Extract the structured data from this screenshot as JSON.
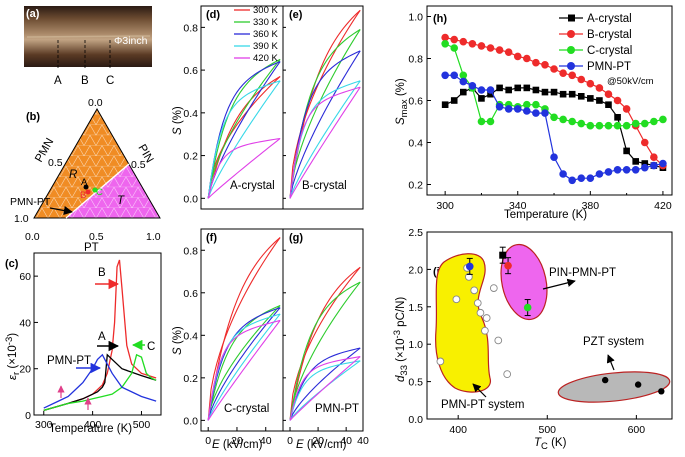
{
  "colors": {
    "T300": "#ee2b2b",
    "T330": "#2ecc2e",
    "T360": "#2b2bd8",
    "T390": "#38d8e8",
    "T420": "#e040e8",
    "A": "#000000",
    "B": "#ee2b2b",
    "C": "#22dd22",
    "PMN": "#2233dd",
    "orange": "#f08c24",
    "magenta": "#ee66ee",
    "yellow": "#f8f000",
    "gray": "#b8b8b8"
  },
  "panel_a": {
    "label": "(a)",
    "wafer": "Φ3inch",
    "markers": [
      "A",
      "B",
      "C"
    ]
  },
  "panel_b": {
    "label": "(b)",
    "corner_top": "0.0",
    "corner_left": "1.0",
    "corner_right": "1.0",
    "left_ticks": [
      "0.5"
    ],
    "right_ticks": [
      "0.5"
    ],
    "bottom_ticks": [
      "0.0",
      "0.5",
      "1.0"
    ],
    "axis_left": "PMN",
    "axis_right": "PIN",
    "axis_bottom": "PT",
    "region_R": "R",
    "region_T": "T",
    "points": [
      "A",
      "B",
      "C"
    ],
    "arrow_label": "PMN-PT"
  },
  "panel_c": {
    "label": "(c)",
    "xlabel": "Temperature (K)",
    "ylabel_main": "ε",
    "ylabel_sub": "r",
    "ylabel_rest": " (×10",
    "ylabel_exp": "-3",
    "ylabel_end": ")",
    "x_ticks": [
      "300",
      "400",
      "500"
    ],
    "y_ticks": [
      "0",
      "20",
      "40",
      "60"
    ],
    "labels": [
      "B",
      "A",
      "C",
      "PMN-PT"
    ]
  },
  "panel_d": {
    "label": "(d)",
    "name": "A-crystal",
    "legend": [
      "300 K",
      "330 K",
      "360 K",
      "390 K",
      "420 K"
    ]
  },
  "panel_e": {
    "label": "(e)",
    "name": "B-crystal"
  },
  "panel_f": {
    "label": "(f)",
    "name": "C-crystal"
  },
  "panel_g": {
    "label": "(g)",
    "name": "PMN-PT"
  },
  "panels_defg": {
    "ylabel": "S (%)",
    "ylabel_s": "S",
    "ylabel_rest": " (%)",
    "xlabel": "E (kV/cm)",
    "xlabel_e": "E",
    "xlabel_rest": " (kV/cm)",
    "x_ticks": [
      "0",
      "20",
      "40"
    ],
    "y_ticks_top": [
      "0.0",
      "0.2",
      "0.4",
      "0.6",
      "0.8"
    ],
    "y_ticks_bot": [
      "0.0",
      "0.2",
      "0.4",
      "0.6",
      "0.8"
    ],
    "extra_x_tick": "40"
  },
  "panel_h": {
    "label": "(h)",
    "xlabel": "Temperature (K)",
    "ylabel": "S",
    "ylabel_sub": "max",
    "ylabel_end": " (%)",
    "x_ticks": [
      "300",
      "340",
      "380",
      "420"
    ],
    "y_ticks": [
      "0.2",
      "0.4",
      "0.6",
      "0.8",
      "1.0"
    ],
    "legend": [
      "A-crystal",
      "B-crystal",
      "C-crystal",
      "PMN-PT"
    ],
    "note": "@50kV/cm"
  },
  "panel_i": {
    "label": "(i)",
    "xlabel": "T",
    "xlabel_sub": "C",
    "xlabel_end": " (K)",
    "ylabel": "d",
    "ylabel_sub": "33",
    "ylabel_rest": " (×10",
    "ylabel_exp": "-3",
    "ylabel_end": " pC/N)",
    "x_ticks": [
      "400",
      "500",
      "600"
    ],
    "y_ticks": [
      "0.0",
      "0.5",
      "1.0",
      "1.5",
      "2.0",
      "2.5"
    ],
    "labels": [
      "PIN-PMN-PT",
      "PZT system",
      "PMN-PT system"
    ]
  },
  "chart_data": [
    {
      "type": "line",
      "panel": "h",
      "title": "S_max vs Temperature @50kV/cm",
      "xlabel": "Temperature (K)",
      "ylabel": "S_max (%)",
      "xlim": [
        290,
        425
      ],
      "ylim": [
        0.15,
        1.05
      ],
      "series": [
        {
          "name": "A-crystal",
          "color": "#000000",
          "marker": "square",
          "x": [
            300,
            305,
            310,
            315,
            320,
            325,
            330,
            335,
            340,
            345,
            350,
            355,
            360,
            365,
            370,
            375,
            380,
            385,
            390,
            395,
            400,
            405,
            410,
            415,
            420
          ],
          "y": [
            0.58,
            0.6,
            0.64,
            0.66,
            0.61,
            0.63,
            0.66,
            0.65,
            0.66,
            0.66,
            0.65,
            0.64,
            0.64,
            0.63,
            0.63,
            0.62,
            0.61,
            0.6,
            0.58,
            0.52,
            0.36,
            0.31,
            0.3,
            0.29,
            0.28
          ]
        },
        {
          "name": "B-crystal",
          "color": "#ee2b2b",
          "marker": "circle",
          "x": [
            300,
            305,
            310,
            315,
            320,
            325,
            330,
            335,
            340,
            345,
            350,
            355,
            360,
            365,
            370,
            375,
            380,
            385,
            390,
            395,
            400,
            405,
            410,
            415,
            420
          ],
          "y": [
            0.9,
            0.89,
            0.88,
            0.87,
            0.86,
            0.85,
            0.84,
            0.83,
            0.81,
            0.8,
            0.78,
            0.77,
            0.75,
            0.73,
            0.72,
            0.7,
            0.68,
            0.66,
            0.63,
            0.6,
            0.56,
            0.48,
            0.4,
            0.33,
            0.29
          ]
        },
        {
          "name": "C-crystal",
          "color": "#22dd22",
          "marker": "circle",
          "x": [
            300,
            305,
            310,
            315,
            320,
            325,
            330,
            335,
            340,
            345,
            350,
            355,
            360,
            365,
            370,
            375,
            380,
            385,
            390,
            395,
            400,
            405,
            410,
            415,
            420
          ],
          "y": [
            0.87,
            0.85,
            0.72,
            0.66,
            0.5,
            0.5,
            0.58,
            0.58,
            0.57,
            0.58,
            0.58,
            0.56,
            0.52,
            0.51,
            0.5,
            0.49,
            0.48,
            0.48,
            0.48,
            0.48,
            0.48,
            0.49,
            0.49,
            0.5,
            0.51
          ]
        },
        {
          "name": "PMN-PT",
          "color": "#2233dd",
          "marker": "circle",
          "x": [
            300,
            305,
            310,
            315,
            320,
            325,
            330,
            335,
            340,
            345,
            350,
            355,
            360,
            365,
            370,
            375,
            380,
            385,
            390,
            395,
            400,
            405,
            410,
            415,
            420
          ],
          "y": [
            0.72,
            0.72,
            0.69,
            0.67,
            0.65,
            0.65,
            0.57,
            0.56,
            0.56,
            0.55,
            0.54,
            0.54,
            0.33,
            0.25,
            0.22,
            0.23,
            0.23,
            0.25,
            0.26,
            0.27,
            0.27,
            0.27,
            0.28,
            0.29,
            0.3
          ]
        }
      ]
    },
    {
      "type": "scatter",
      "panel": "i",
      "xlabel": "T_C (K)",
      "ylabel": "d33 (×10^-3 pC/N)",
      "xlim": [
        365,
        640
      ],
      "ylim": [
        0,
        2.5
      ],
      "series": [
        {
          "name": "PMN-PT system",
          "x": [
            380,
            398,
            410,
            412,
            418,
            422,
            425,
            430,
            432,
            440,
            445,
            455
          ],
          "y": [
            0.77,
            1.6,
            2.02,
            1.9,
            1.72,
            1.55,
            1.42,
            1.18,
            1.35,
            1.75,
            1.05,
            0.6
          ]
        },
        {
          "name": "PZT system",
          "x": [
            565,
            602,
            628
          ],
          "y": [
            0.52,
            0.46,
            0.37
          ]
        },
        {
          "name": "A-crystal",
          "x": [
            450
          ],
          "y": [
            2.19
          ]
        },
        {
          "name": "B-crystal",
          "x": [
            456
          ],
          "y": [
            2.05
          ]
        },
        {
          "name": "C-crystal",
          "x": [
            478
          ],
          "y": [
            1.49
          ]
        },
        {
          "name": "PMN-PT",
          "x": [
            413
          ],
          "y": [
            2.04
          ]
        }
      ]
    },
    {
      "type": "line",
      "panel": "c",
      "xlabel": "Temperature (K)",
      "ylabel": "εr (×10^-3)",
      "xlim": [
        280,
        540
      ],
      "ylim": [
        0,
        70
      ],
      "series": [
        {
          "name": "B",
          "x": [
            300,
            350,
            380,
            400,
            420,
            430,
            440,
            445,
            450,
            455,
            460,
            470,
            480,
            500,
            530
          ],
          "y": [
            2,
            5,
            7,
            9,
            13,
            18,
            28,
            40,
            64,
            67,
            55,
            30,
            22,
            18,
            16
          ]
        },
        {
          "name": "A",
          "x": [
            300,
            350,
            380,
            400,
            410,
            420,
            425,
            430,
            440,
            460,
            500,
            530
          ],
          "y": [
            2,
            5,
            7,
            9,
            10,
            12,
            14,
            26,
            24,
            20,
            17,
            15
          ]
        },
        {
          "name": "C",
          "x": [
            300,
            350,
            380,
            400,
            420,
            440,
            460,
            480,
            490,
            500,
            510,
            520,
            530
          ],
          "y": [
            2,
            5,
            6,
            7,
            8,
            9,
            12,
            18,
            26,
            25,
            18,
            16,
            15
          ]
        },
        {
          "name": "PMN-PT",
          "x": [
            300,
            330,
            350,
            370,
            380,
            390,
            400,
            410,
            420,
            430,
            440,
            460,
            500,
            530
          ],
          "y": [
            3,
            6,
            8,
            12,
            14,
            17,
            20,
            24,
            26,
            22,
            18,
            12,
            8,
            6
          ]
        }
      ]
    },
    {
      "type": "line",
      "panel": "d-g",
      "xlabel": "E (kV/cm)",
      "ylabel": "S (%)",
      "xlim": [
        -5,
        52
      ],
      "ylim": [
        -0.05,
        0.9
      ],
      "panels": [
        {
          "name": "A-crystal",
          "maxima": {
            "300": 0.57,
            "330": 0.65,
            "360": 0.64,
            "390": 0.55,
            "420": 0.28
          }
        },
        {
          "name": "B-crystal",
          "maxima": {
            "300": 0.88,
            "330": 0.79,
            "360": 0.69,
            "390": 0.55,
            "420": 0.52
          }
        },
        {
          "name": "C-crystal",
          "maxima": {
            "300": 0.86,
            "330": 0.54,
            "360": 0.53,
            "390": 0.5,
            "420": 0.47
          }
        },
        {
          "name": "PMN-PT",
          "maxima": {
            "300": 0.72,
            "330": 0.65,
            "360": 0.34,
            "390": 0.28,
            "420": 0.3
          }
        }
      ]
    }
  ]
}
